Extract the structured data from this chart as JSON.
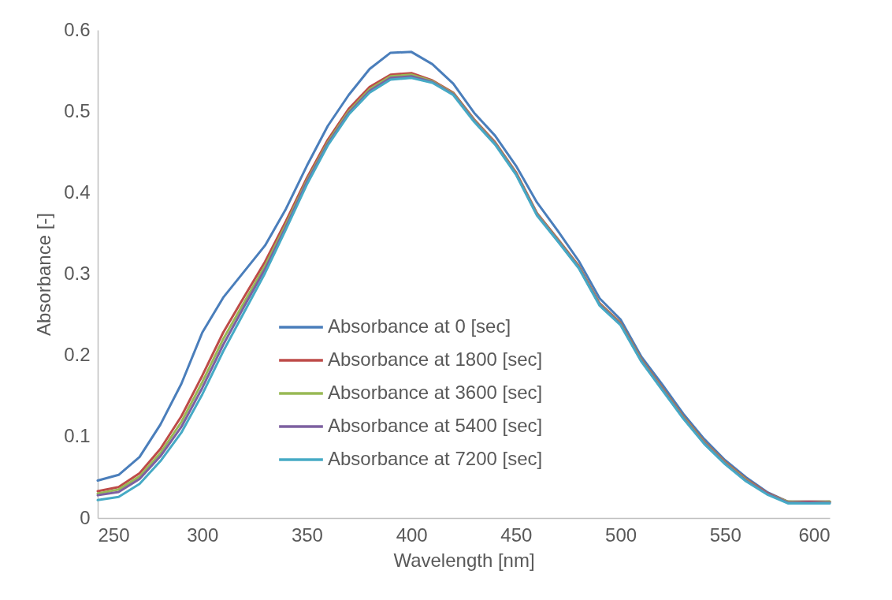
{
  "chart_data": {
    "type": "line",
    "xlabel": "Wavelength [nm]",
    "ylabel": "Absorbance [-]",
    "x": [
      250,
      260,
      270,
      280,
      290,
      300,
      310,
      320,
      330,
      340,
      350,
      360,
      370,
      380,
      390,
      400,
      410,
      420,
      430,
      440,
      450,
      460,
      470,
      480,
      490,
      500,
      510,
      520,
      530,
      540,
      550,
      560,
      570,
      580,
      590,
      600
    ],
    "series": [
      {
        "name": "Absorbance at 0 [sec]",
        "color": "#4a7ebb",
        "values": [
          0.046,
          0.053,
          0.075,
          0.115,
          0.165,
          0.228,
          0.271,
          0.303,
          0.335,
          0.38,
          0.433,
          0.482,
          0.52,
          0.552,
          0.572,
          0.573,
          0.558,
          0.534,
          0.498,
          0.47,
          0.433,
          0.388,
          0.353,
          0.316,
          0.27,
          0.244,
          0.198,
          0.164,
          0.128,
          0.097,
          0.071,
          0.05,
          0.032,
          0.02,
          0.02,
          0.02
        ]
      },
      {
        "name": "Absorbance at 1800 [sec]",
        "color": "#be4b48",
        "values": [
          0.033,
          0.038,
          0.055,
          0.085,
          0.125,
          0.175,
          0.228,
          0.272,
          0.315,
          0.365,
          0.418,
          0.465,
          0.503,
          0.53,
          0.545,
          0.547,
          0.538,
          0.523,
          0.49,
          0.462,
          0.425,
          0.375,
          0.343,
          0.31,
          0.264,
          0.24,
          0.195,
          0.16,
          0.125,
          0.094,
          0.069,
          0.048,
          0.031,
          0.02,
          0.02,
          0.02
        ]
      },
      {
        "name": "Absorbance at 3600 [sec]",
        "color": "#98b954",
        "values": [
          0.03,
          0.035,
          0.051,
          0.08,
          0.118,
          0.167,
          0.22,
          0.265,
          0.31,
          0.361,
          0.415,
          0.462,
          0.5,
          0.527,
          0.543,
          0.545,
          0.537,
          0.522,
          0.489,
          0.461,
          0.424,
          0.374,
          0.342,
          0.309,
          0.263,
          0.239,
          0.194,
          0.159,
          0.124,
          0.093,
          0.068,
          0.047,
          0.03,
          0.02,
          0.019,
          0.02
        ]
      },
      {
        "name": "Absorbance at 5400 [sec]",
        "color": "#7d60a0",
        "values": [
          0.028,
          0.032,
          0.048,
          0.076,
          0.112,
          0.16,
          0.213,
          0.26,
          0.306,
          0.358,
          0.413,
          0.46,
          0.498,
          0.525,
          0.541,
          0.543,
          0.536,
          0.521,
          0.488,
          0.46,
          0.423,
          0.373,
          0.341,
          0.308,
          0.262,
          0.238,
          0.193,
          0.158,
          0.123,
          0.092,
          0.067,
          0.046,
          0.03,
          0.019,
          0.019,
          0.019
        ]
      },
      {
        "name": "Absorbance at 7200 [sec]",
        "color": "#46aac5",
        "values": [
          0.022,
          0.026,
          0.042,
          0.07,
          0.105,
          0.152,
          0.205,
          0.253,
          0.301,
          0.355,
          0.41,
          0.458,
          0.496,
          0.523,
          0.539,
          0.541,
          0.535,
          0.52,
          0.487,
          0.459,
          0.422,
          0.372,
          0.34,
          0.307,
          0.261,
          0.237,
          0.192,
          0.157,
          0.122,
          0.091,
          0.066,
          0.045,
          0.029,
          0.018,
          0.018,
          0.018
        ]
      }
    ],
    "xlim": [
      250,
      600
    ],
    "xticks": [
      250,
      300,
      350,
      400,
      450,
      500,
      550,
      600
    ],
    "ylim": [
      0,
      0.6
    ],
    "yticks": [
      0,
      0.1,
      0.2,
      0.3,
      0.4,
      0.5,
      0.6
    ],
    "grid": false,
    "legend": "bottom",
    "line_style": "solid"
  }
}
